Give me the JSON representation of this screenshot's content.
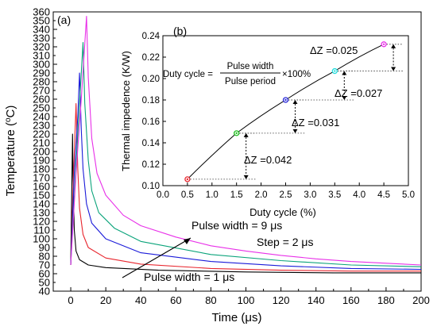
{
  "chart_data": [
    {
      "panel_label": "(a)",
      "type": "line",
      "xlabel": "Time (μs)",
      "ylabel_parts": [
        "Temperature (",
        "o",
        "C)"
      ],
      "xlim": [
        -10,
        200
      ],
      "ylim": [
        40,
        360
      ],
      "x_ticks": [
        0,
        20,
        40,
        60,
        80,
        100,
        120,
        140,
        160,
        180,
        200
      ],
      "y_ticks": [
        40,
        50,
        60,
        70,
        80,
        90,
        100,
        110,
        120,
        130,
        140,
        150,
        160,
        170,
        180,
        190,
        200,
        210,
        220,
        230,
        240,
        250,
        260,
        270,
        280,
        290,
        300,
        310,
        320,
        330,
        340,
        350,
        360
      ],
      "series": [
        {
          "pulse_width_us": 1,
          "color": "#000000",
          "points": [
            [
              0,
              70
            ],
            [
              0.6,
              160
            ],
            [
              1,
              220
            ],
            [
              1.4,
              160
            ],
            [
              2,
              110
            ],
            [
              3,
              86
            ],
            [
              5,
              76
            ],
            [
              10,
              70
            ],
            [
              20,
              67
            ],
            [
              50,
              64
            ],
            [
              100,
              62
            ],
            [
              150,
              61
            ],
            [
              200,
              61
            ]
          ]
        },
        {
          "pulse_width_us": 3,
          "color": "#e8262e",
          "points": [
            [
              0,
              70
            ],
            [
              1.5,
              170
            ],
            [
              3,
              255
            ],
            [
              4,
              180
            ],
            [
              5,
              135
            ],
            [
              7,
              105
            ],
            [
              10,
              90
            ],
            [
              20,
              78
            ],
            [
              40,
              71
            ],
            [
              80,
              66
            ],
            [
              120,
              64
            ],
            [
              160,
              63
            ],
            [
              200,
              63
            ]
          ]
        },
        {
          "pulse_width_us": 5,
          "color": "#1a1ad9",
          "points": [
            [
              0,
              70
            ],
            [
              2,
              175
            ],
            [
              4,
              240
            ],
            [
              5,
              290
            ],
            [
              6,
              225
            ],
            [
              7,
              180
            ],
            [
              9,
              140
            ],
            [
              12,
              118
            ],
            [
              20,
              100
            ],
            [
              40,
              84
            ],
            [
              80,
              74
            ],
            [
              120,
              69
            ],
            [
              160,
              66
            ],
            [
              200,
              65
            ]
          ]
        },
        {
          "pulse_width_us": 7,
          "color": "#0aa37a",
          "points": [
            [
              0,
              70
            ],
            [
              3,
              185
            ],
            [
              5,
              255
            ],
            [
              7,
              325
            ],
            [
              8,
              255
            ],
            [
              10,
              190
            ],
            [
              12,
              155
            ],
            [
              16,
              130
            ],
            [
              25,
              112
            ],
            [
              40,
              97
            ],
            [
              80,
              82
            ],
            [
              120,
              75
            ],
            [
              160,
              70
            ],
            [
              200,
              68
            ]
          ]
        },
        {
          "pulse_width_us": 9,
          "color": "#e830e8",
          "points": [
            [
              0,
              70
            ],
            [
              3,
              175
            ],
            [
              6,
              260
            ],
            [
              9,
              355
            ],
            [
              10,
              285
            ],
            [
              12,
              215
            ],
            [
              15,
              175
            ],
            [
              20,
              150
            ],
            [
              30,
              127
            ],
            [
              40,
              115
            ],
            [
              60,
              102
            ],
            [
              80,
              92
            ],
            [
              100,
              86
            ],
            [
              120,
              81
            ],
            [
              140,
              77
            ],
            [
              160,
              74
            ],
            [
              180,
              72
            ],
            [
              200,
              70
            ]
          ]
        }
      ],
      "annotations": {
        "top": "Pulse width = 9 μs",
        "step": "Step = 2 μs",
        "bottom": "Pulse width = 1 μs"
      }
    },
    {
      "panel_label": "(b)",
      "type": "line",
      "xlabel": "Duty cycle (%)",
      "ylabel": "Thermal impedence (K/W)",
      "xlim": [
        0,
        5
      ],
      "ylim": [
        0.1,
        0.24
      ],
      "x_ticks": [
        "0.0",
        "0.5",
        "1.0",
        "1.5",
        "2.0",
        "2.5",
        "3.0",
        "3.5",
        "4.0",
        "4.5",
        "5.0"
      ],
      "y_ticks": [
        "0.10",
        "0.12",
        "0.14",
        "0.16",
        "0.18",
        "0.20",
        "0.22",
        "0.24"
      ],
      "points": [
        {
          "x": 0.5,
          "y": 0.106,
          "color": "#e8262e"
        },
        {
          "x": 1.5,
          "y": 0.149,
          "color": "#20c020"
        },
        {
          "x": 2.5,
          "y": 0.18,
          "color": "#2a2ad9"
        },
        {
          "x": 3.5,
          "y": 0.207,
          "color": "#22dddd"
        },
        {
          "x": 4.5,
          "y": 0.232,
          "color": "#e830e8"
        }
      ],
      "formula": {
        "lhs": "Duty cycle =",
        "numerator": "Pulse width",
        "denominator": "Pulse period",
        "suffix": "×100%"
      },
      "deltas": [
        {
          "label": "ΔZ =0.042"
        },
        {
          "label": "ΔZ =0.031"
        },
        {
          "label": "ΔZ =0.027"
        },
        {
          "label": "ΔZ =0.025"
        }
      ]
    }
  ]
}
